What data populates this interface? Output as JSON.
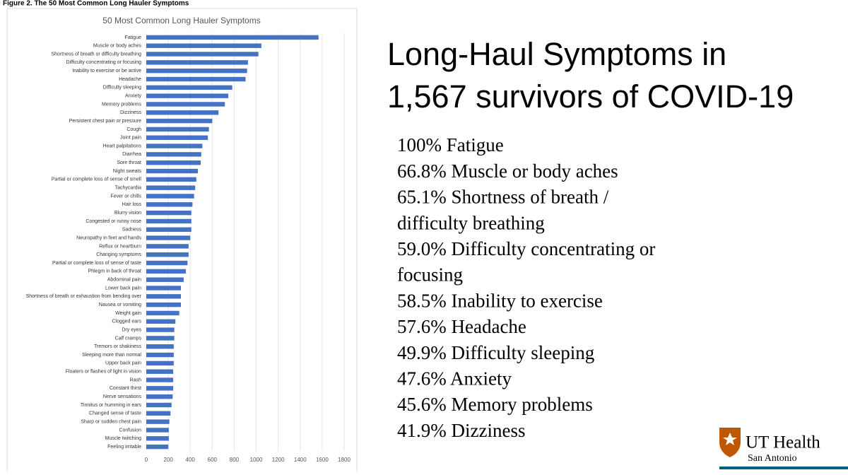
{
  "figure_caption": "Figure 2. The 50 Most Common Long Hauler Symptoms",
  "chart_data": {
    "type": "barh",
    "title": "50 Most Common Long Hauler Symptoms",
    "color": "#4472c4",
    "grid": true,
    "categories": [
      "Fatigue",
      "Muscle or body aches",
      "Shortness of breath or difficulty breathing",
      "Difficulty concentrating or focusing",
      "Inability to exercise or be active",
      "Headache",
      "Difficulty sleeping",
      "Anxiety",
      "Memory problems",
      "Dizziness",
      "Persistent chest pain or pressure",
      "Cough",
      "Joint pain",
      "Heart palpitations",
      "Diarrhea",
      "Sore throat",
      "Night sweats",
      "Partial or complete loss of sense of smell",
      "Tachycardia",
      "Fever or chills",
      "Hair loss",
      "Blurry vision",
      "Congested or runny nose",
      "Sadness",
      "Neuropathy in feet and hands",
      "Reflux or heartburn",
      "Changing symptoms",
      "Partial or complete loss of sense of taste",
      "Phlegm in back of throat",
      "Abdominal pain",
      "Lower back pain",
      "Shortness of breath or exhaustion from bending over",
      "Nausea or vomiting",
      "Weight gain",
      "Clogged ears",
      "Dry eyes",
      "Calf cramps",
      "Tremors or shakiness",
      "Sleeping more than normal",
      "Upper back pain",
      "Floaters or flashes of light in vision",
      "Rash",
      "Constant thirst",
      "Nerve sensations",
      "Tinnitus or humming in ears",
      "Changed sense of taste",
      "Sharp or sudden chest pain",
      "Confusion",
      "Muscle twitching",
      "Feeling irritable"
    ],
    "values": [
      1567,
      1047,
      1020,
      925,
      917,
      903,
      782,
      746,
      715,
      657,
      600,
      570,
      560,
      510,
      500,
      495,
      470,
      455,
      445,
      435,
      420,
      410,
      410,
      410,
      400,
      385,
      385,
      375,
      360,
      340,
      315,
      315,
      315,
      300,
      265,
      255,
      255,
      250,
      250,
      250,
      245,
      245,
      245,
      240,
      230,
      220,
      210,
      205,
      205,
      200
    ],
    "xlim": [
      0,
      1800
    ],
    "xticks": [
      0,
      200,
      400,
      600,
      800,
      1000,
      1200,
      1400,
      1600,
      1800
    ]
  },
  "slide": {
    "title_lines": [
      "Long-Haul Symptoms in",
      "1,567 survivors of COVID-19"
    ],
    "list_lines": [
      "100% Fatigue",
      "66.8% Muscle or body aches",
      "65.1% Shortness of breath /",
      "difficulty breathing",
      "59.0% Difficulty concentrating or",
      "focusing",
      "58.5% Inability to exercise",
      "57.6% Headache",
      "49.9% Difficulty sleeping",
      "47.6% Anxiety",
      "45.6% Memory problems",
      "41.9% Dizziness"
    ],
    "logo": {
      "name": "UT Health",
      "sub": "San Antonio"
    }
  }
}
